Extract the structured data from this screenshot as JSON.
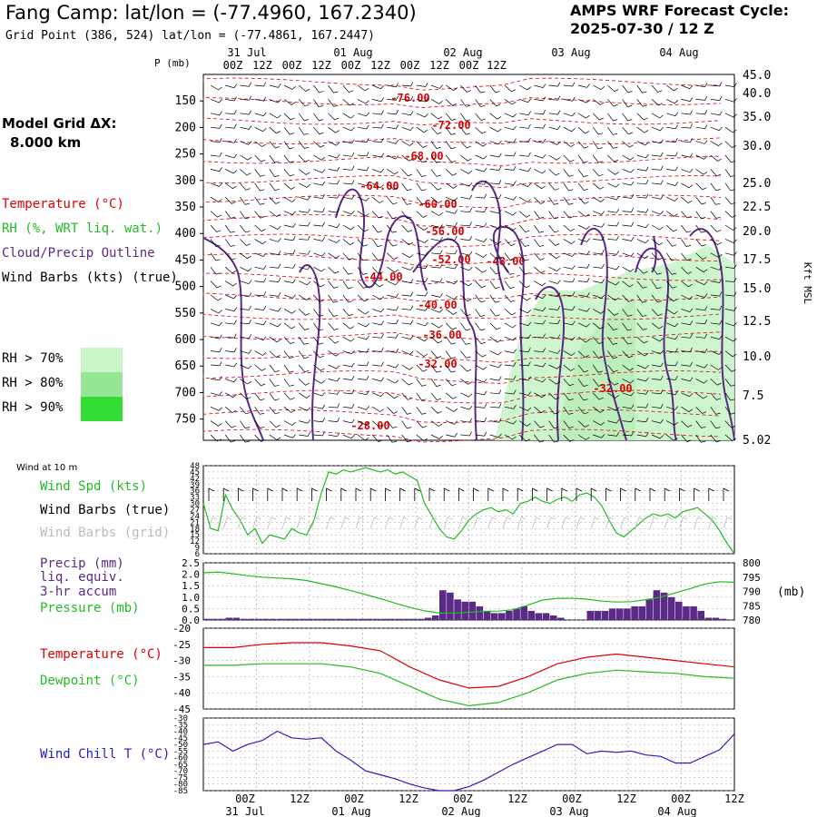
{
  "header": {
    "title": "Fang Camp:  lat/lon = (-77.4960, 167.2340)",
    "grid_point": "Grid Point (386, 524) lat/lon = (-77.4861, 167.2447)",
    "cycle_line1": "AMPS WRF Forecast Cycle:",
    "cycle_line2": "2025-07-30 / 12  Z"
  },
  "side": {
    "model_grid_line1": "Model Grid ΔX:",
    "model_grid_line2": "8.000 km",
    "legend": {
      "temperature": "Temperature (°C)",
      "rh": "RH (%, WRT liq. wat.)",
      "cloud": "Cloud/Precip Outline",
      "wind": "Wind Barbs (kts) (true)"
    },
    "rh_bins": [
      {
        "label": "RH > 70%",
        "color": "#c9f5c9"
      },
      {
        "label": "RH > 80%",
        "color": "#96e696"
      },
      {
        "label": "RH > 90%",
        "color": "#33dd33"
      }
    ]
  },
  "time_axis": {
    "ticks": [
      "00Z",
      "12Z",
      "00Z",
      "12Z",
      "00Z",
      "12Z",
      "00Z",
      "12Z",
      "00Z",
      "12Z"
    ],
    "dates": [
      "31 Jul",
      "01 Aug",
      "02 Aug",
      "03 Aug",
      "04 Aug"
    ]
  },
  "chart_data": [
    {
      "type": "heatmap",
      "name": "Vertical cross-section",
      "ylabel": "P (mb)",
      "y2label": "Kft MSL",
      "p_ticks": [
        150,
        200,
        250,
        300,
        350,
        400,
        450,
        500,
        550,
        600,
        650,
        700,
        750
      ],
      "kft_ticks": [
        "45.0",
        "40.0",
        "35.0",
        "30.0",
        "25.0",
        "22.5",
        "20.0",
        "17.5",
        "15.0",
        "12.5",
        "10.0",
        "7.5",
        "5.02"
      ],
      "temperature_labels": [
        "-76.00",
        "-72.00",
        "-68.00",
        "-64.00",
        "-60.00",
        "-56.00",
        "-52.00",
        "-48.00",
        "-44.00",
        "-40.00",
        "-36.00",
        "-32.00",
        "-32.00",
        "-28.00"
      ],
      "colors": {
        "temperature": "#dd0000",
        "rh": "#33aa33",
        "cloud": "#5b2a86",
        "wind": "#000000",
        "rh_fill": "#c9f5c9"
      }
    },
    {
      "type": "line",
      "name": "Wind at 10 m",
      "title": "Wind at 10 m",
      "labels": [
        "Wind Spd (kts)",
        "Wind Barbs (true)",
        "Wind Barbs (grid)"
      ],
      "y_ticks": [
        48,
        45,
        42,
        39,
        36,
        33,
        30,
        27,
        24,
        21,
        18,
        15,
        12,
        9,
        6
      ],
      "ylim": [
        6,
        48
      ],
      "x": [
        0,
        3,
        6,
        9,
        12,
        15,
        18,
        21,
        24,
        27,
        30,
        33,
        36,
        39,
        42,
        45,
        48,
        51,
        54,
        57,
        60,
        63,
        66,
        69,
        72,
        75,
        78,
        81,
        84,
        87,
        90,
        93,
        96,
        99,
        102,
        105,
        108,
        111,
        114,
        117,
        120,
        123,
        126,
        129,
        132,
        135,
        138,
        141,
        144,
        147,
        150,
        153,
        156,
        159,
        162,
        165,
        168,
        171,
        174,
        177,
        180,
        183,
        186,
        189,
        192,
        195,
        198,
        201,
        204,
        207,
        210,
        213,
        216
      ],
      "wind_speed": [
        30,
        18,
        17,
        34,
        27,
        22,
        15,
        18,
        11,
        15,
        14,
        13,
        18,
        16,
        15,
        22,
        35,
        45,
        44,
        46,
        45,
        46,
        47,
        46,
        45,
        46,
        44,
        45,
        43,
        41,
        30,
        24,
        18,
        14,
        13,
        17,
        22,
        25,
        27,
        28,
        26,
        27,
        25,
        30,
        31,
        33,
        31,
        30,
        32,
        33,
        31,
        34,
        35,
        33,
        29,
        22,
        16,
        14,
        17,
        20,
        23,
        25,
        24,
        25,
        23,
        26,
        27,
        28,
        25,
        22,
        17,
        11,
        6
      ],
      "colors": {
        "speed": "#22bb22",
        "barbs_true": "#000000",
        "barbs_grid": "#bbbbbb"
      }
    },
    {
      "type": "bar",
      "name": "Precipitation and pressure",
      "labels": [
        "Precip (mm)",
        "liq. equiv.",
        "3-hr accum",
        "Pressure (mb)"
      ],
      "y_ticks": [
        "2.5",
        "2.0",
        "1.5",
        "1.0",
        "0.5",
        "0.0"
      ],
      "ylim": [
        0,
        2.5
      ],
      "y2_ticks": [
        "800",
        "795",
        "790",
        "785",
        "780"
      ],
      "y2_label": "(mb)",
      "y2lim": [
        780,
        800
      ],
      "precip_hours": [
        0,
        3,
        6,
        9,
        12,
        15,
        18,
        21,
        24,
        27,
        30,
        33,
        36,
        39,
        42,
        45,
        48,
        51,
        54,
        57,
        60,
        63,
        66,
        69,
        72,
        75,
        78,
        81,
        84,
        87,
        90,
        93,
        96,
        99,
        102,
        105,
        108,
        111,
        114,
        117,
        120,
        123,
        126,
        129,
        132,
        135,
        138,
        141,
        144,
        147,
        150,
        153,
        156,
        159,
        162,
        165,
        168,
        171,
        174,
        177,
        180,
        183,
        186,
        189,
        192,
        195,
        198,
        201,
        204,
        207,
        210,
        213
      ],
      "precip": [
        0.05,
        0.05,
        0.05,
        0.1,
        0.1,
        0.05,
        0.05,
        0.05,
        0.05,
        0.05,
        0.05,
        0.05,
        0.05,
        0.05,
        0.05,
        0.05,
        0.05,
        0.05,
        0.05,
        0.05,
        0.05,
        0.05,
        0.05,
        0.05,
        0.05,
        0.05,
        0.05,
        0.05,
        0.05,
        0.05,
        0.1,
        0.2,
        1.3,
        1.2,
        0.9,
        0.8,
        0.8,
        0.6,
        0.4,
        0.3,
        0.3,
        0.4,
        0.5,
        0.6,
        0.4,
        0.3,
        0.3,
        0.2,
        0.1,
        0.0,
        0.0,
        0.0,
        0.4,
        0.4,
        0.4,
        0.5,
        0.5,
        0.5,
        0.6,
        0.6,
        0.9,
        1.3,
        1.2,
        1.0,
        0.8,
        0.6,
        0.6,
        0.4,
        0.1,
        0.1,
        0.05,
        0.0
      ],
      "pressure_hours": [
        0,
        6,
        12,
        18,
        24,
        30,
        36,
        42,
        48,
        54,
        60,
        66,
        72,
        78,
        84,
        90,
        96,
        102,
        108,
        114,
        120,
        126,
        132,
        138,
        144,
        150,
        156,
        162,
        168,
        174,
        180,
        186,
        192,
        198,
        204,
        210,
        216
      ],
      "pressure": [
        796.5,
        796.8,
        796.2,
        795.5,
        795.0,
        794.7,
        794.4,
        793.8,
        792.7,
        791.6,
        790.3,
        788.9,
        787.5,
        785.9,
        784.4,
        783.2,
        782.4,
        782.4,
        782.7,
        783.0,
        783.1,
        783.6,
        785.2,
        787.0,
        787.6,
        787.6,
        787.3,
        786.6,
        786.3,
        786.4,
        787.1,
        788.0,
        789.5,
        791.0,
        792.6,
        793.4,
        793.2
      ],
      "colors": {
        "precip": "#5b2a86",
        "pressure": "#22bb22"
      }
    },
    {
      "type": "line",
      "name": "Temperature and dewpoint",
      "labels": [
        "Temperature (°C)",
        "Dewpoint (°C)"
      ],
      "y_ticks": [
        -20,
        -25,
        -30,
        -35,
        -40,
        -45
      ],
      "ylim": [
        -45,
        -20
      ],
      "x": [
        0,
        12,
        24,
        36,
        48,
        60,
        72,
        84,
        96,
        108,
        120,
        132,
        144,
        156,
        168,
        180,
        192,
        204,
        216
      ],
      "temperature": [
        -26,
        -26,
        -25,
        -24.5,
        -24.5,
        -25.5,
        -27,
        -32,
        -36,
        -38.5,
        -38,
        -35,
        -31,
        -29,
        -28,
        -29,
        -30,
        -31,
        -32
      ],
      "dewpoint": [
        -31.5,
        -31.5,
        -31,
        -31,
        -31,
        -32,
        -34,
        -38,
        -42,
        -44,
        -43,
        -40,
        -36,
        -34,
        -33,
        -33.5,
        -34,
        -35,
        -35.5
      ],
      "colors": {
        "temperature": "#dd0000",
        "dewpoint": "#22bb22"
      }
    },
    {
      "type": "line",
      "name": "Wind chill",
      "labels": [
        "Wind Chill T (°C)"
      ],
      "y_ticks": [
        -30,
        -35,
        -40,
        -45,
        -50,
        -55,
        -60,
        -65,
        -70,
        -75,
        -80,
        -85
      ],
      "ylim": [
        -85,
        -30
      ],
      "x": [
        0,
        6,
        12,
        18,
        24,
        30,
        36,
        42,
        48,
        54,
        60,
        66,
        72,
        78,
        84,
        90,
        96,
        102,
        108,
        114,
        120,
        126,
        132,
        138,
        144,
        150,
        156,
        162,
        168,
        174,
        180,
        186,
        192,
        198,
        204,
        210,
        216
      ],
      "wind_chill": [
        -50,
        -48,
        -55,
        -50,
        -47,
        -40,
        -45,
        -46,
        -45,
        -55,
        -62,
        -70,
        -73,
        -76,
        -80,
        -83,
        -85,
        -85,
        -82,
        -77,
        -71,
        -65,
        -60,
        -55,
        -50,
        -50,
        -57,
        -55,
        -56,
        -55,
        -58,
        -59,
        -64,
        -64,
        -59,
        -54,
        -42
      ],
      "colors": {
        "wind_chill": "#2222bb"
      }
    }
  ]
}
